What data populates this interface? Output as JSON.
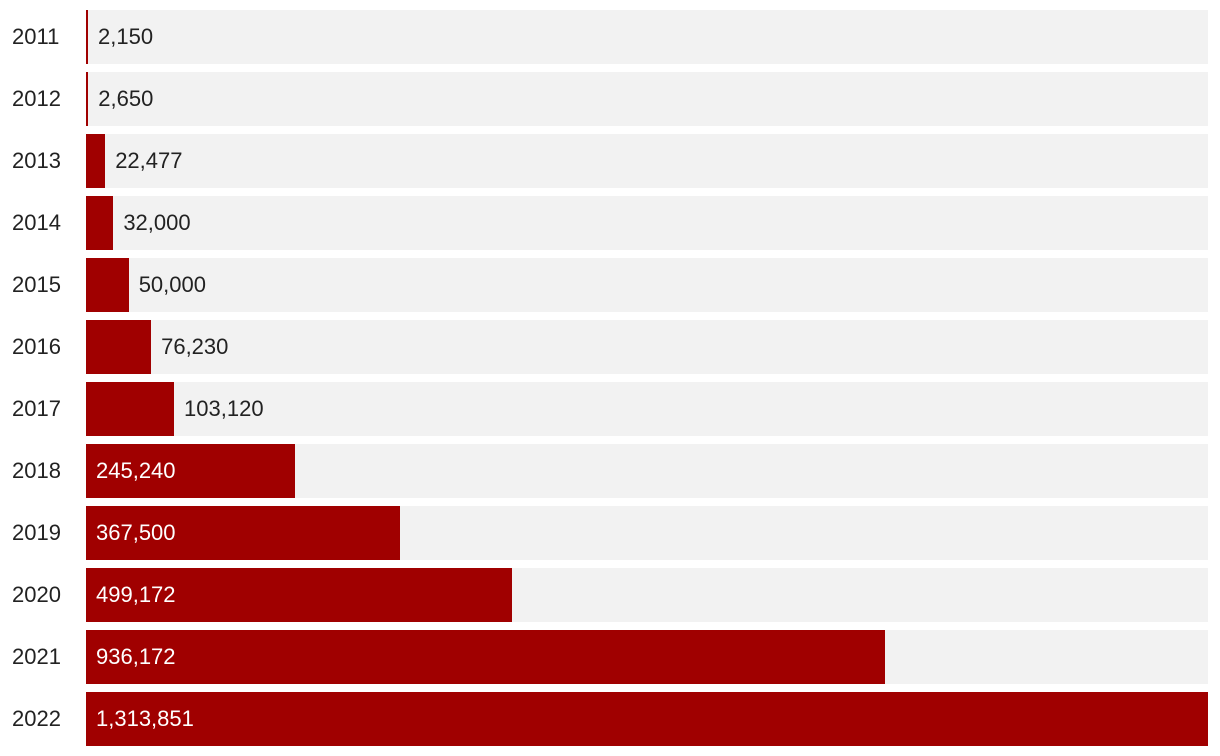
{
  "chart_data": {
    "type": "bar",
    "orientation": "horizontal",
    "categories": [
      "2011",
      "2012",
      "2013",
      "2014",
      "2015",
      "2016",
      "2017",
      "2018",
      "2019",
      "2020",
      "2021",
      "2022"
    ],
    "values": [
      2150,
      2650,
      22477,
      32000,
      50000,
      76230,
      103120,
      245240,
      367500,
      499172,
      936172,
      1313851
    ],
    "value_labels": [
      "2,150",
      "2,650",
      "22,477",
      "32,000",
      "50,000",
      "76,230",
      "103,120",
      "245,240",
      "367,500",
      "499,172",
      "936,172",
      "1,313,851"
    ],
    "xlim": [
      0,
      1313851
    ],
    "grid": false,
    "legend": "none"
  },
  "colors": {
    "bar": "#a00000",
    "track": "#f2f2f2",
    "label_inside": "#ffffff",
    "label_outside": "#222222"
  }
}
